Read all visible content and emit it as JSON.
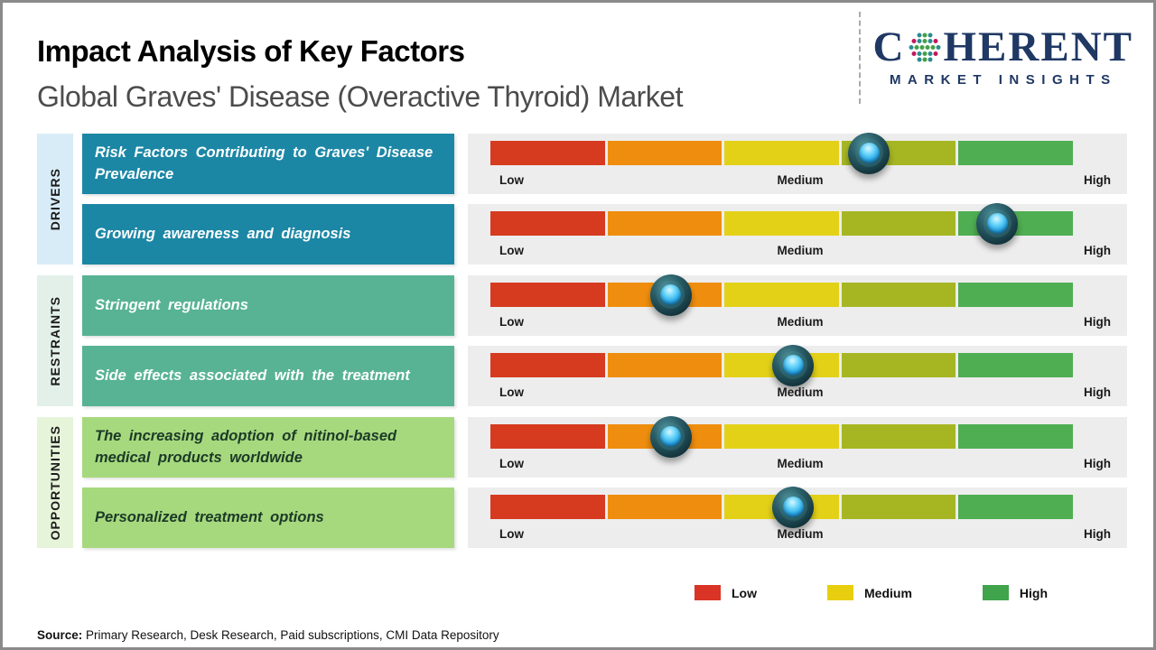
{
  "header": {
    "title": "Impact Analysis of Key Factors",
    "subtitle": "Global Graves' Disease (Overactive Thyroid) Market",
    "logo": {
      "brand_c": "C",
      "brand_rest": "HERENT",
      "tagline": "MARKET INSIGHTS",
      "navy": "#1f3864",
      "globe_colors": [
        "#2a8d8f",
        "#43a047",
        "#c2185b"
      ]
    }
  },
  "groups": [
    {
      "name": "DRIVERS",
      "strip_color": "#d8ecf7",
      "box_color": "#1c87a5"
    },
    {
      "name": "RESTRAINTS",
      "strip_color": "#e3f0ea",
      "box_color": "#57b393"
    },
    {
      "name": "OPPORTUNITIES",
      "strip_color": "#e6f4da",
      "box_color": "#a6d97d"
    }
  ],
  "rows": [
    {
      "group": "DRIVERS",
      "label": "Risk Factors Contributing to Graves' Disease Prevalence",
      "impact_percent": 65
    },
    {
      "group": "DRIVERS",
      "label": "Growing awareness and diagnosis",
      "impact_percent": 87
    },
    {
      "group": "RESTRAINTS",
      "label": "Stringent regulations",
      "impact_percent": 31
    },
    {
      "group": "RESTRAINTS",
      "label": "Side effects associated with the treatment",
      "impact_percent": 52
    },
    {
      "group": "OPPORTUNITIES",
      "label": "The increasing adoption of nitinol-based medical products worldwide",
      "impact_percent": 31
    },
    {
      "group": "OPPORTUNITIES",
      "label": "Personalized treatment options",
      "impact_percent": 52
    }
  ],
  "scale": {
    "low": "Low",
    "medium": "Medium",
    "high": "High",
    "segment_colors": [
      "#d63b20",
      "#ef8e0e",
      "#e3d118",
      "#a6b623",
      "#4fae52"
    ]
  },
  "legend": {
    "items": [
      {
        "label": "Low",
        "color": "#d93425"
      },
      {
        "label": "Medium",
        "color": "#e7cf10"
      },
      {
        "label": "High",
        "color": "#3fa44c"
      }
    ]
  },
  "source": {
    "label": "Source:",
    "text": " Primary Research, Desk Research, Paid subscriptions, CMI Data Repository"
  },
  "chart_data": {
    "type": "bar",
    "orientation": "horizontal-slider",
    "title": "Impact Analysis of Key Factors",
    "subtitle": "Global Graves' Disease (Overactive Thyroid) Market",
    "categories": [
      "Risk Factors Contributing to Graves' Disease Prevalence",
      "Growing awareness and diagnosis",
      "Stringent regulations",
      "Side effects associated with the treatment",
      "The increasing adoption of nitinol-based medical products worldwide",
      "Personalized treatment options"
    ],
    "series_groups": [
      "Drivers",
      "Drivers",
      "Restraints",
      "Restraints",
      "Opportunities",
      "Opportunities"
    ],
    "values": [
      65,
      87,
      31,
      52,
      31,
      52
    ],
    "value_unit": "percent of Low→High scale",
    "impact_readings": [
      "Medium-High",
      "High",
      "Low-Medium",
      "Medium",
      "Low-Medium",
      "Medium"
    ],
    "xlabel": "",
    "ylabel": "",
    "xlim": [
      0,
      100
    ],
    "axis_tick_labels": [
      "Low",
      "Medium",
      "High"
    ],
    "legend_entries": [
      "Low",
      "Medium",
      "High"
    ],
    "legend_position": "bottom-right",
    "grid": false
  }
}
